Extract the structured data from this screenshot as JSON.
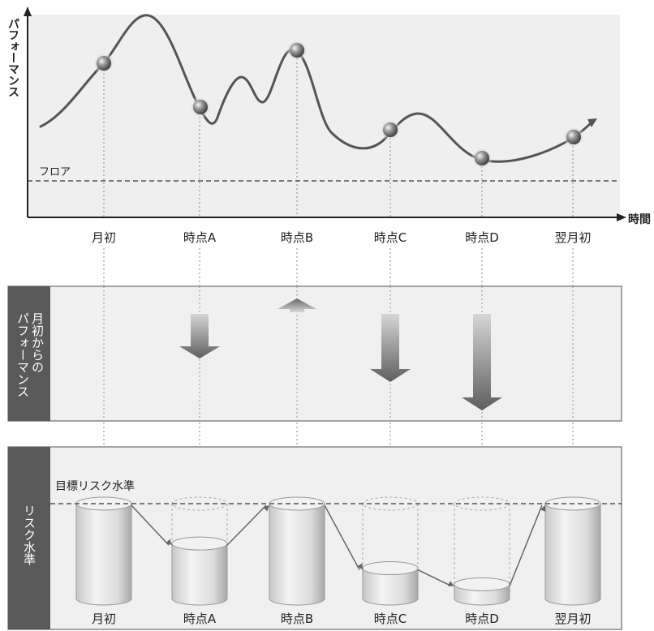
{
  "top_chart": {
    "y_axis_label": "パフォーマンス",
    "x_axis_label": "時間",
    "floor_label": "フロア",
    "time_labels": [
      "月初",
      "時点A",
      "時点B",
      "時点C",
      "時点D",
      "翌月初"
    ]
  },
  "middle_panel": {
    "title": "月初からのパフォーマンス",
    "changes": [
      {
        "point": "時点A",
        "direction": "down",
        "magnitude": "medium"
      },
      {
        "point": "時点B",
        "direction": "up",
        "magnitude": "small"
      },
      {
        "point": "時点C",
        "direction": "down",
        "magnitude": "large"
      },
      {
        "point": "時点D",
        "direction": "down",
        "magnitude": "largest"
      }
    ]
  },
  "bottom_panel": {
    "title": "リスク水準",
    "target_label": "目標リスク水準",
    "levels": [
      {
        "label": "月初",
        "fill": 1.0
      },
      {
        "label": "時点A",
        "fill": 0.58
      },
      {
        "label": "時点B",
        "fill": 1.0
      },
      {
        "label": "時点C",
        "fill": 0.32
      },
      {
        "label": "時点D",
        "fill": 0.15
      },
      {
        "label": "翌月初",
        "fill": 1.0
      }
    ]
  },
  "colors": {
    "panel_bg": "#f0f0f0",
    "side_bar": "#555555",
    "curve": "#555555",
    "arrow_dark": "#666666",
    "arrow_light": "#cccccc"
  }
}
